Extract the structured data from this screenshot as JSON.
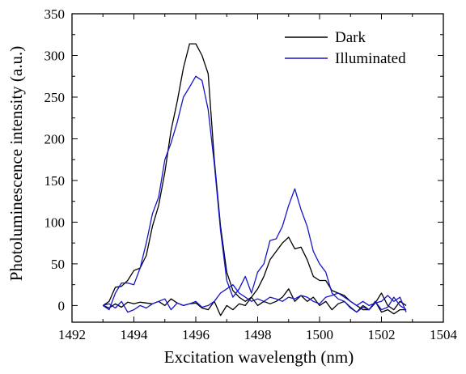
{
  "chart_data": {
    "type": "line",
    "title": "",
    "xlabel": "Excitation wavelength (nm)",
    "ylabel": "Photoluminescence intensity (a.u.)",
    "xlim": [
      1492,
      1504
    ],
    "ylim": [
      -20,
      350
    ],
    "xticks": [
      "1492",
      "1494",
      "1496",
      "1498",
      "1500",
      "1502",
      "1504"
    ],
    "yticks": [
      "0",
      "50",
      "100",
      "150",
      "200",
      "250",
      "300",
      "350"
    ],
    "legend_position": "top-right",
    "grid": false,
    "series": [
      {
        "name": "Dark",
        "color": "#000000",
        "segments": [
          {
            "x": [
              1493.0,
              1493.2,
              1493.4,
              1493.6,
              1493.8,
              1494.0,
              1494.2,
              1494.4,
              1494.6,
              1494.8,
              1495.0,
              1495.2,
              1495.4,
              1495.6,
              1495.8,
              1496.0,
              1496.2,
              1496.4,
              1496.6,
              1496.8,
              1497.0,
              1497.2,
              1497.4,
              1497.6,
              1497.8,
              1498.0,
              1498.2,
              1498.4,
              1498.6,
              1498.8,
              1499.0,
              1499.2,
              1499.4,
              1499.6,
              1499.8,
              1500.0,
              1500.2,
              1500.4,
              1500.6,
              1500.8,
              1501.0,
              1501.2,
              1501.4,
              1501.6,
              1501.8,
              1502.0,
              1502.2,
              1502.4,
              1502.6,
              1502.8
            ],
            "y": [
              0,
              5,
              22,
              23,
              30,
              42,
              45,
              60,
              95,
              120,
              160,
              210,
              245,
              285,
              314,
              314,
              300,
              278,
              175,
              95,
              40,
              18,
              10,
              5,
              10,
              20,
              35,
              55,
              65,
              75,
              82,
              68,
              70,
              55,
              35,
              30,
              30,
              18,
              15,
              12,
              5,
              0,
              -5,
              -5,
              5,
              -8,
              -5,
              -10,
              -5,
              -5
            ]
          },
          {
            "x": [
              1493.0,
              1493.2,
              1493.4,
              1493.6,
              1493.8,
              1494.0,
              1494.2,
              1494.4,
              1494.6,
              1494.8,
              1495.0,
              1495.2,
              1495.4,
              1495.6,
              1495.8,
              1496.0,
              1496.2,
              1496.4,
              1496.6,
              1496.8,
              1497.0,
              1497.2,
              1497.4,
              1497.6,
              1497.8,
              1498.0,
              1498.2,
              1498.4,
              1498.6,
              1498.8,
              1499.0,
              1499.2,
              1499.4,
              1499.6,
              1499.8,
              1500.0,
              1500.2,
              1500.4,
              1500.6,
              1500.8,
              1501.0,
              1501.2,
              1501.4,
              1501.6,
              1501.8,
              1502.0,
              1502.2,
              1502.4,
              1502.6,
              1502.8
            ],
            "y": [
              0,
              -3,
              2,
              -2,
              4,
              2,
              4,
              3,
              2,
              5,
              0,
              8,
              3,
              0,
              2,
              3,
              -3,
              -5,
              5,
              -12,
              0,
              -5,
              2,
              0,
              10,
              0,
              5,
              2,
              5,
              10,
              20,
              5,
              12,
              5,
              10,
              0,
              5,
              -5,
              2,
              5,
              -2,
              -8,
              0,
              -5,
              3,
              15,
              0,
              -5,
              5,
              0
            ]
          }
        ]
      },
      {
        "name": "Illuminated",
        "color": "#1515c8",
        "segments": [
          {
            "x": [
              1493.0,
              1493.2,
              1493.4,
              1493.6,
              1493.8,
              1494.0,
              1494.2,
              1494.4,
              1494.6,
              1494.8,
              1495.0,
              1495.2,
              1495.4,
              1495.6,
              1495.8,
              1496.0,
              1496.2,
              1496.4,
              1496.6,
              1496.8,
              1497.0,
              1497.2,
              1497.4,
              1497.6,
              1497.8,
              1498.0,
              1498.2,
              1498.4,
              1498.6,
              1498.8,
              1499.0,
              1499.2,
              1499.4,
              1499.6,
              1499.8,
              1500.0,
              1500.2,
              1500.4,
              1500.6,
              1500.8,
              1501.0,
              1501.2,
              1501.4,
              1501.6,
              1501.8,
              1502.0,
              1502.2,
              1502.4,
              1502.6,
              1502.8
            ],
            "y": [
              0,
              -5,
              15,
              27,
              27,
              25,
              45,
              75,
              110,
              130,
              175,
              195,
              220,
              250,
              262,
              275,
              270,
              235,
              170,
              90,
              30,
              10,
              20,
              35,
              15,
              40,
              50,
              78,
              80,
              95,
              120,
              140,
              115,
              95,
              65,
              50,
              40,
              15,
              8,
              5,
              -3,
              -8,
              -2,
              -5,
              5,
              -5,
              -2,
              10,
              0,
              -5
            ]
          },
          {
            "x": [
              1493.0,
              1493.2,
              1493.4,
              1493.6,
              1493.8,
              1494.0,
              1494.2,
              1494.4,
              1494.6,
              1494.8,
              1495.0,
              1495.2,
              1495.4,
              1495.6,
              1495.8,
              1496.0,
              1496.2,
              1496.4,
              1496.6,
              1496.8,
              1497.0,
              1497.2,
              1497.4,
              1497.6,
              1497.8,
              1498.0,
              1498.2,
              1498.4,
              1498.6,
              1498.8,
              1499.0,
              1499.2,
              1499.4,
              1499.6,
              1499.8,
              1500.0,
              1500.2,
              1500.4,
              1500.6,
              1500.8,
              1501.0,
              1501.2,
              1501.4,
              1501.6,
              1501.8,
              1502.0,
              1502.2,
              1502.4,
              1502.6,
              1502.8
            ],
            "y": [
              0,
              2,
              -3,
              5,
              -8,
              -5,
              0,
              -3,
              2,
              5,
              8,
              -5,
              3,
              0,
              2,
              5,
              -2,
              0,
              5,
              15,
              20,
              25,
              15,
              10,
              5,
              8,
              5,
              10,
              8,
              5,
              10,
              8,
              12,
              10,
              5,
              2,
              10,
              12,
              15,
              10,
              5,
              0,
              5,
              0,
              3,
              5,
              12,
              5,
              10,
              -8
            ]
          }
        ]
      }
    ]
  }
}
